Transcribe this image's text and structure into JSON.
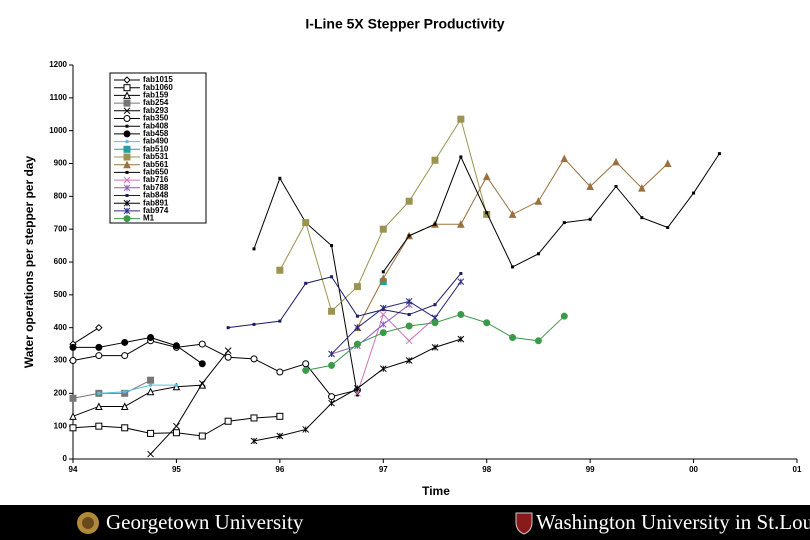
{
  "chart_data": {
    "type": "line",
    "title": "I-Line 5X Stepper Productivity",
    "x_label": "Time",
    "y_label": "Water operations per stepper per day",
    "x": [
      1994,
      1994.25,
      1994.5,
      1994.75,
      1995,
      1995.25,
      1995.5,
      1995.75,
      1996,
      1996.25,
      1996.5,
      1996.75,
      1997,
      1997.25,
      1997.5,
      1997.75,
      1998,
      1998.25,
      1998.5,
      1998.75,
      1999,
      1999.25,
      1999.5,
      1999.75,
      2000,
      2000.25
    ],
    "xlim": [
      1994,
      2001
    ],
    "xticks": [
      {
        "value": 1994,
        "label": "94"
      },
      {
        "value": 1995,
        "label": "95"
      },
      {
        "value": 1996,
        "label": "96"
      },
      {
        "value": 1997,
        "label": "97"
      },
      {
        "value": 1998,
        "label": "98"
      },
      {
        "value": 1999,
        "label": "99"
      },
      {
        "value": 2000,
        "label": "00"
      },
      {
        "value": 2001,
        "label": "01"
      }
    ],
    "ylim": [
      0,
      1200
    ],
    "yticks": [
      0,
      100,
      200,
      300,
      400,
      500,
      600,
      700,
      800,
      900,
      1000,
      1100,
      1200
    ],
    "series": [
      {
        "name": "fab1015",
        "color": "#000000",
        "marker": "diamond",
        "values": [
          350,
          400,
          null,
          null,
          null,
          null,
          null,
          null,
          null,
          null,
          null,
          null,
          null,
          null,
          null,
          null,
          null,
          null,
          null,
          null,
          null,
          null,
          null,
          null,
          null,
          null
        ]
      },
      {
        "name": "fab1060",
        "color": "#000000",
        "marker": "square",
        "values": [
          95,
          100,
          95,
          78,
          80,
          70,
          115,
          125,
          130,
          null,
          null,
          null,
          null,
          null,
          null,
          null,
          null,
          null,
          null,
          null,
          null,
          null,
          null,
          null,
          null,
          null
        ]
      },
      {
        "name": "fab159",
        "color": "#000000",
        "marker": "triangle",
        "values": [
          130,
          160,
          160,
          205,
          220,
          225,
          null,
          null,
          null,
          null,
          null,
          null,
          null,
          null,
          null,
          null,
          null,
          null,
          null,
          null,
          null,
          null,
          null,
          null,
          null,
          null
        ]
      },
      {
        "name": "fab254",
        "color": "#777777",
        "marker": "square",
        "values": [
          185,
          200,
          200,
          240,
          null,
          null,
          null,
          null,
          null,
          null,
          null,
          null,
          null,
          null,
          null,
          null,
          null,
          null,
          null,
          null,
          null,
          null,
          null,
          null,
          null,
          null
        ]
      },
      {
        "name": "fab293",
        "color": "#000000",
        "marker": "x",
        "values": [
          null,
          null,
          null,
          15,
          100,
          230,
          330,
          null,
          null,
          null,
          null,
          null,
          null,
          null,
          null,
          null,
          null,
          null,
          null,
          null,
          null,
          null,
          null,
          null,
          null,
          null
        ]
      },
      {
        "name": "fab350",
        "color": "#000000",
        "marker": "circle-open",
        "values": [
          300,
          315,
          315,
          360,
          340,
          350,
          310,
          305,
          265,
          290,
          190,
          210,
          null,
          null,
          null,
          null,
          null,
          null,
          null,
          null,
          null,
          null,
          null,
          null,
          null,
          null
        ]
      },
      {
        "name": "fab408",
        "color": "#000000",
        "marker": "none",
        "values": [
          null,
          null,
          null,
          null,
          null,
          null,
          null,
          640,
          855,
          720,
          650,
          195,
          null,
          null,
          null,
          null,
          null,
          null,
          null,
          null,
          null,
          null,
          null,
          null,
          null,
          null
        ]
      },
      {
        "name": "fab458",
        "color": "#000000",
        "marker": "circle",
        "values": [
          340,
          340,
          355,
          370,
          345,
          290,
          null,
          null,
          null,
          null,
          null,
          null,
          null,
          null,
          null,
          null,
          null,
          null,
          null,
          null,
          null,
          null,
          null,
          null,
          null,
          null
        ]
      },
      {
        "name": "fab490",
        "color": "#55c0dd",
        "marker": "none",
        "values": [
          null,
          200,
          205,
          225,
          225,
          null,
          null,
          null,
          null,
          null,
          null,
          null,
          null,
          null,
          null,
          null,
          null,
          null,
          null,
          null,
          null,
          null,
          null,
          null,
          null,
          null
        ]
      },
      {
        "name": "fab510",
        "color": "#2a9fa0",
        "marker": "square",
        "values": [
          null,
          null,
          null,
          null,
          null,
          null,
          null,
          null,
          null,
          null,
          null,
          null,
          540,
          null,
          null,
          null,
          null,
          null,
          null,
          null,
          null,
          null,
          null,
          null,
          null,
          null
        ]
      },
      {
        "name": "fab531",
        "color": "#9a9450",
        "marker": "square",
        "values": [
          null,
          null,
          null,
          null,
          null,
          null,
          null,
          null,
          575,
          720,
          450,
          525,
          700,
          785,
          910,
          1035,
          745,
          null,
          null,
          null,
          null,
          null,
          null,
          null,
          null,
          null
        ]
      },
      {
        "name": "fab561",
        "color": "#9a7040",
        "marker": "triangle",
        "values": [
          null,
          null,
          null,
          null,
          null,
          null,
          null,
          null,
          null,
          null,
          null,
          400,
          550,
          680,
          715,
          715,
          860,
          745,
          785,
          915,
          830,
          905,
          825,
          900,
          null,
          null
        ]
      },
      {
        "name": "fab650",
        "color": "#000000",
        "marker": "none",
        "values": [
          null,
          null,
          null,
          null,
          null,
          null,
          null,
          null,
          null,
          null,
          null,
          null,
          570,
          680,
          715,
          920,
          750,
          585,
          625,
          720,
          730,
          830,
          735,
          705,
          810,
          930
        ]
      },
      {
        "name": "fab716",
        "color": "#d070b8",
        "marker": "x",
        "values": [
          null,
          null,
          null,
          null,
          null,
          null,
          null,
          null,
          null,
          null,
          null,
          200,
          440,
          360,
          430,
          null,
          null,
          null,
          null,
          null,
          null,
          null,
          null,
          null,
          null,
          null
        ]
      },
      {
        "name": "fab788",
        "color": "#8a5ac0",
        "marker": "star",
        "values": [
          null,
          null,
          null,
          null,
          null,
          null,
          null,
          null,
          null,
          null,
          320,
          345,
          410,
          470,
          null,
          null,
          null,
          null,
          null,
          null,
          null,
          null,
          null,
          null,
          null,
          null
        ]
      },
      {
        "name": "fab848",
        "color": "#1a1a60",
        "marker": "none",
        "values": [
          null,
          null,
          null,
          null,
          null,
          null,
          400,
          410,
          420,
          535,
          555,
          435,
          455,
          440,
          470,
          565,
          null,
          null,
          null,
          null,
          null,
          null,
          null,
          null,
          null,
          null
        ]
      },
      {
        "name": "fab891",
        "color": "#000000",
        "marker": "star",
        "values": [
          null,
          null,
          null,
          null,
          null,
          null,
          null,
          55,
          70,
          90,
          170,
          215,
          275,
          300,
          340,
          365,
          null,
          null,
          null,
          null,
          null,
          null,
          null,
          null,
          null,
          null
        ]
      },
      {
        "name": "fab974",
        "color": "#2a2a80",
        "marker": "star",
        "values": [
          null,
          null,
          null,
          null,
          null,
          null,
          null,
          null,
          null,
          null,
          320,
          400,
          460,
          480,
          430,
          540,
          null,
          null,
          null,
          null,
          null,
          null,
          null,
          null,
          null,
          null
        ]
      },
      {
        "name": "M1",
        "color": "#3a9a4a",
        "marker": "circle",
        "values": [
          null,
          null,
          null,
          null,
          null,
          null,
          null,
          null,
          null,
          270,
          285,
          350,
          385,
          405,
          415,
          440,
          415,
          370,
          360,
          435,
          null,
          null,
          null,
          null,
          null,
          null
        ]
      }
    ]
  },
  "footer": {
    "left": "Georgetown University",
    "right": "Washington University in St.Louis"
  }
}
